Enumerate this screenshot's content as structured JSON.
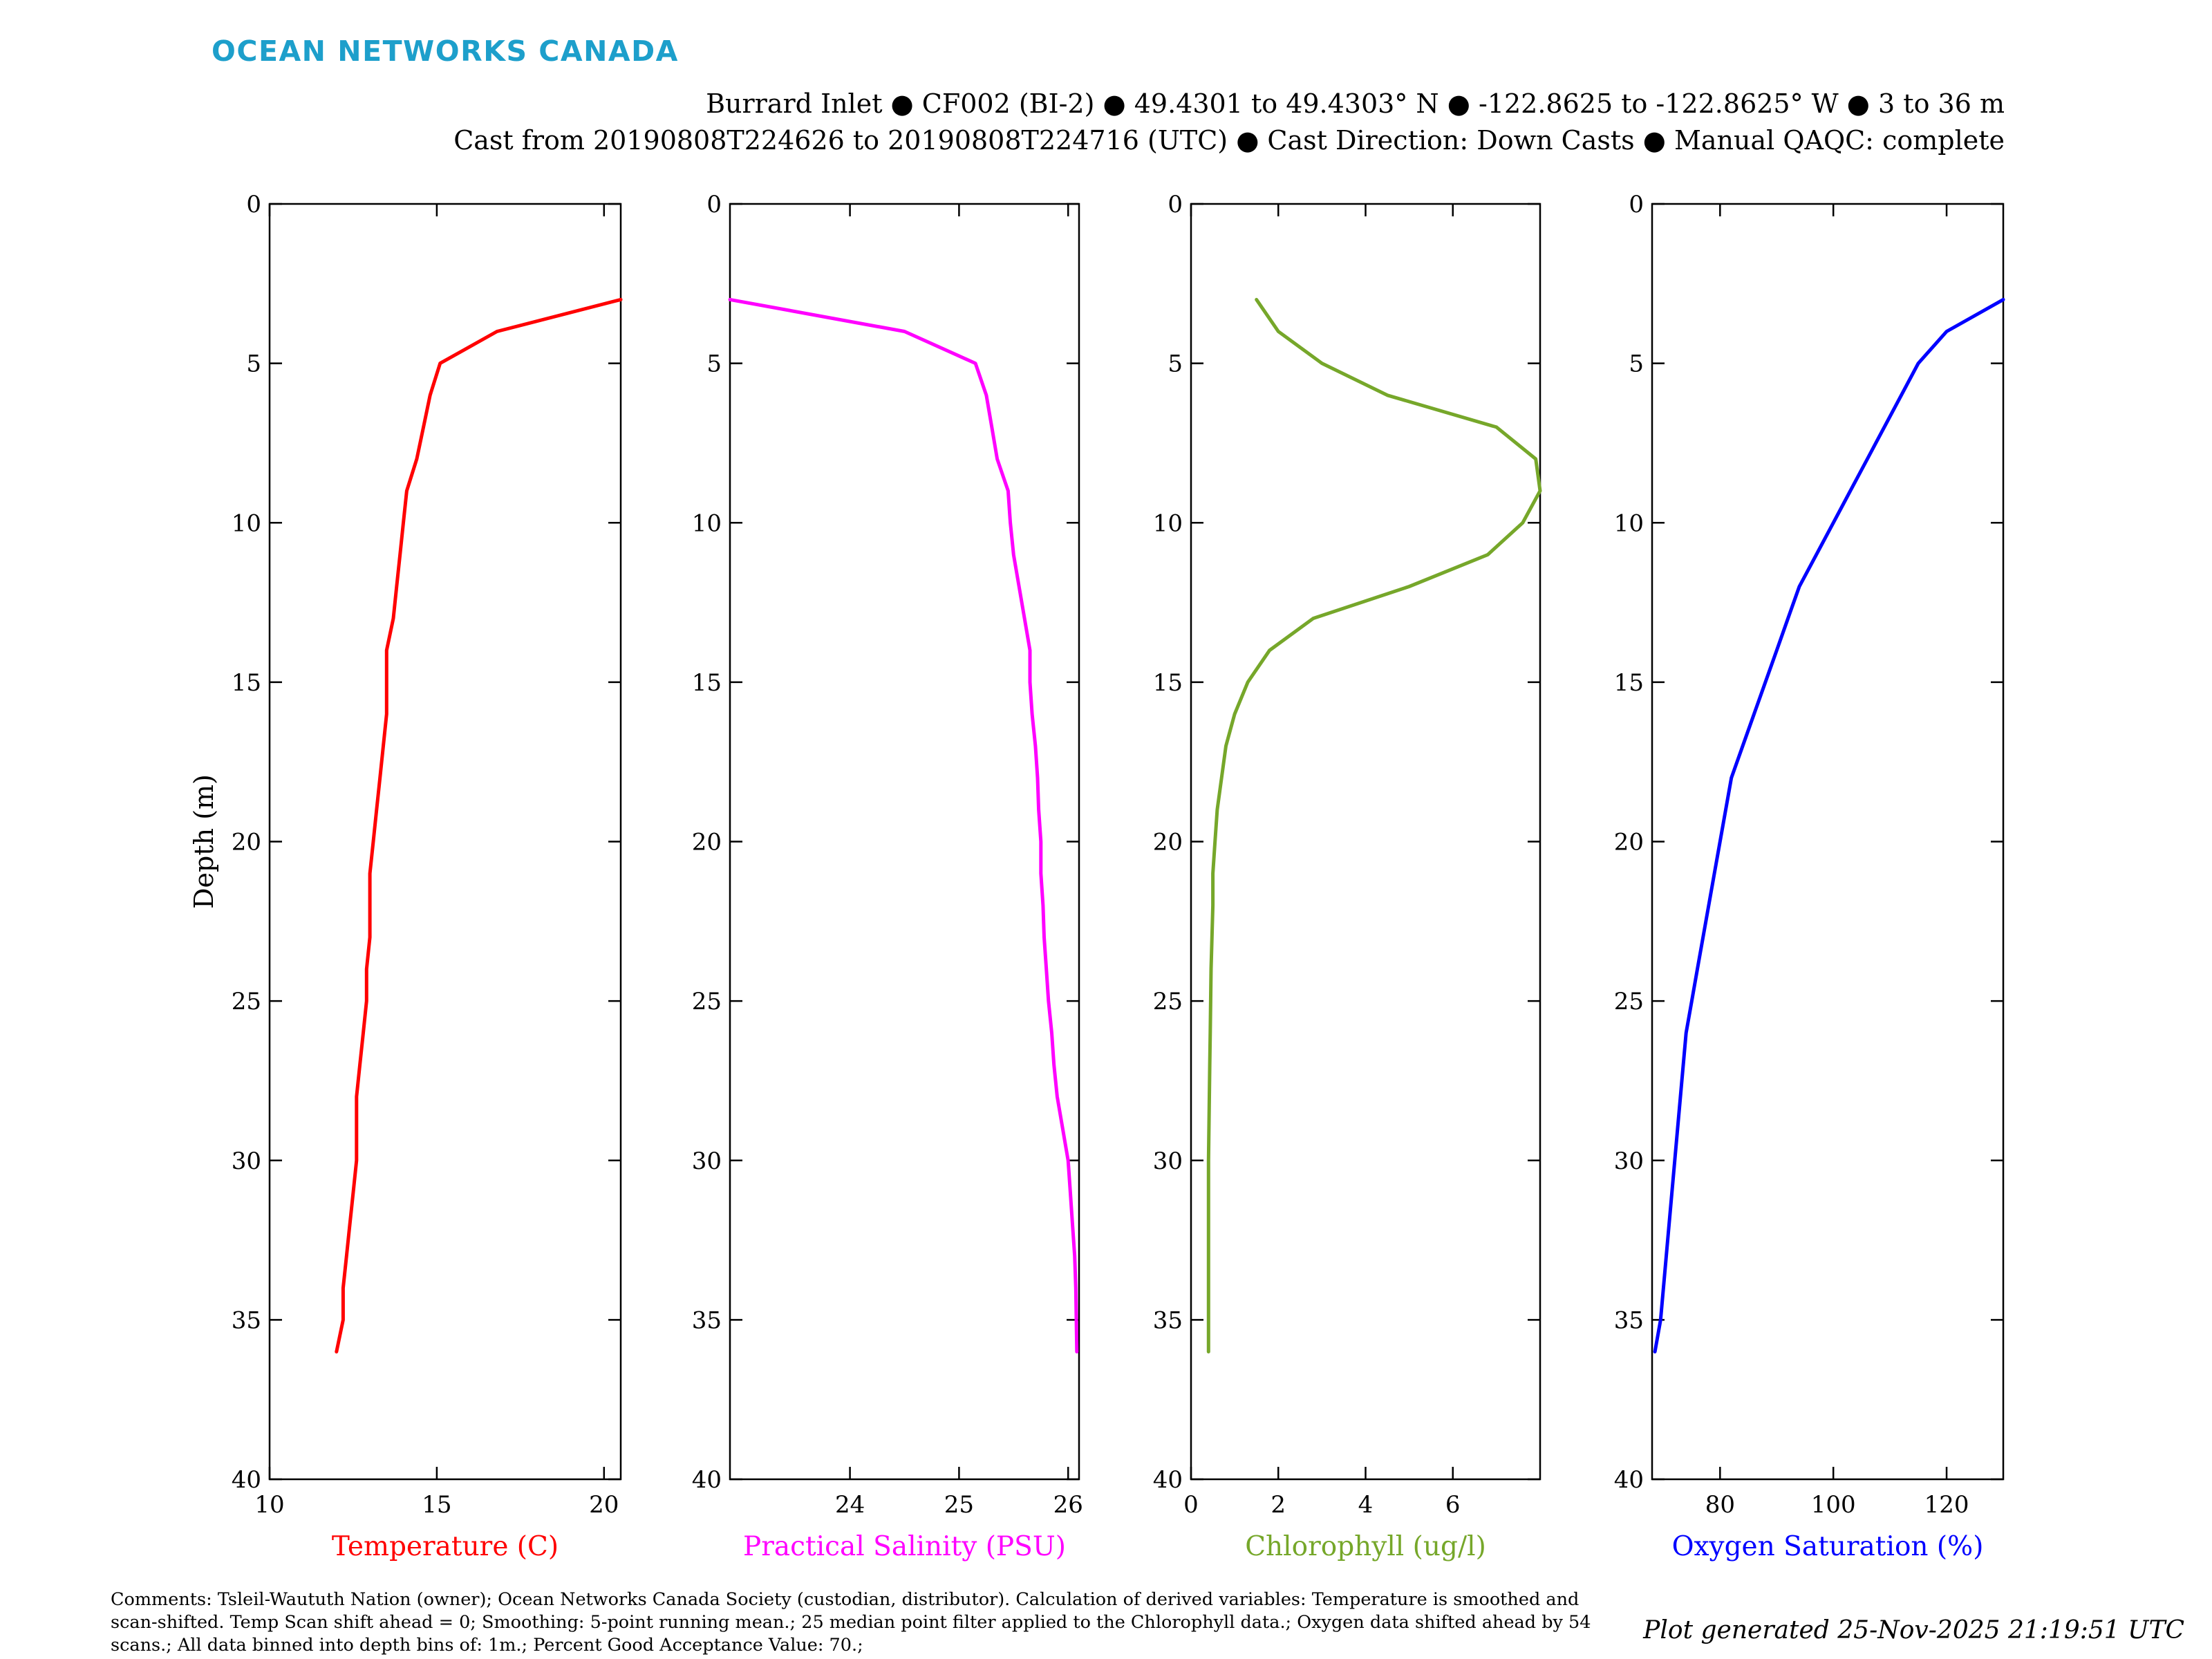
{
  "brand": "OCEAN NETWORKS CANADA",
  "title_line1": "Burrard Inlet ● CF002 (BI-2) ● 49.4301 to 49.4303° N ● -122.8625 to -122.8625° W ● 3 to 36 m",
  "title_line2": "Cast from 20190808T224626 to 20190808T224716 (UTC) ● Cast Direction: Down Casts ● Manual QAQC: complete",
  "comments": "Comments: Tsleil-Waututh Nation (owner); Ocean Networks Canada Society (custodian, distributor). Calculation of derived variables: Temperature is smoothed and scan-shifted. Temp Scan shift ahead = 0; Smoothing: 5-point running mean.; 25 median point filter applied to the Chlorophyll data.; Oxygen data shifted ahead by 54 scans.; All data binned into depth bins of: 1m.; Percent Good Acceptance Value: 70.;",
  "generated": "Plot generated 25-Nov-2025 21:19:51 UTC",
  "chart_data": [
    {
      "type": "line",
      "xlabel": "Temperature (C)",
      "ylabel": "Depth (m)",
      "color": "#ff0000",
      "xlim": [
        10,
        20.5
      ],
      "xticks": [
        10,
        15,
        20
      ],
      "ylim": [
        0,
        40
      ],
      "yticks": [
        0,
        5,
        10,
        15,
        20,
        25,
        30,
        35,
        40
      ],
      "y_reversed": true,
      "series": [
        {
          "x": [
            20.5,
            16.8,
            15.1,
            14.8,
            14.6,
            14.4,
            14.1,
            14.0,
            13.9,
            13.8,
            13.7,
            13.5,
            13.5,
            13.5,
            13.4,
            13.3,
            13.2,
            13.1,
            13.0,
            13.0,
            13.0,
            12.9,
            12.9,
            12.8,
            12.7,
            12.6,
            12.6,
            12.6,
            12.5,
            12.4,
            12.3,
            12.2,
            12.2,
            12.1,
            12.0
          ],
          "y": [
            3,
            4,
            5,
            6,
            7,
            8,
            9,
            10,
            11,
            12,
            13,
            14,
            15,
            16,
            17,
            18,
            19,
            20,
            21,
            22,
            23,
            24,
            25,
            26,
            27,
            28,
            29,
            30,
            31,
            32,
            33,
            34,
            35,
            35.5,
            36
          ]
        }
      ]
    },
    {
      "type": "line",
      "xlabel": "Practical Salinity (PSU)",
      "ylabel": "",
      "color": "#ff00ff",
      "xlim": [
        22.9,
        26.1
      ],
      "xticks": [
        24,
        25,
        26
      ],
      "ylim": [
        0,
        40
      ],
      "yticks": [
        0,
        5,
        10,
        15,
        20,
        25,
        30,
        35,
        40
      ],
      "y_reversed": true,
      "series": [
        {
          "x": [
            22.9,
            24.5,
            25.15,
            25.25,
            25.3,
            25.35,
            25.45,
            25.47,
            25.5,
            25.55,
            25.6,
            25.65,
            25.65,
            25.67,
            25.7,
            25.72,
            25.73,
            25.75,
            25.75,
            25.77,
            25.78,
            25.8,
            25.82,
            25.85,
            25.87,
            25.9,
            25.95,
            26.0,
            26.02,
            26.04,
            26.06,
            26.07,
            26.08
          ],
          "y": [
            3,
            4,
            5,
            6,
            7,
            8,
            9,
            10,
            11,
            12,
            13,
            14,
            15,
            16,
            17,
            18,
            19,
            20,
            21,
            22,
            23,
            24,
            25,
            26,
            27,
            28,
            29,
            30,
            31,
            32,
            33,
            34,
            36
          ]
        }
      ]
    },
    {
      "type": "line",
      "xlabel": "Chlorophyll (ug/l)",
      "ylabel": "",
      "color": "#76a72a",
      "xlim": [
        0,
        8
      ],
      "xticks": [
        0,
        2,
        4,
        6
      ],
      "ylim": [
        0,
        40
      ],
      "yticks": [
        0,
        5,
        10,
        15,
        20,
        25,
        30,
        35,
        40
      ],
      "y_reversed": true,
      "series": [
        {
          "x": [
            1.5,
            2.0,
            3.0,
            4.5,
            7.0,
            7.9,
            8.0,
            7.6,
            6.8,
            5.0,
            2.8,
            1.8,
            1.3,
            1.0,
            0.8,
            0.7,
            0.6,
            0.55,
            0.5,
            0.5,
            0.48,
            0.46,
            0.45,
            0.44,
            0.43,
            0.42,
            0.41,
            0.4,
            0.4,
            0.4,
            0.4,
            0.4,
            0.4,
            0.4
          ],
          "y": [
            3,
            4,
            5,
            6,
            7,
            8,
            9,
            10,
            11,
            12,
            13,
            14,
            15,
            16,
            17,
            18,
            19,
            20,
            21,
            22,
            23,
            24,
            25,
            26,
            27,
            28,
            29,
            30,
            31,
            32,
            33,
            34,
            35,
            36
          ]
        }
      ]
    },
    {
      "type": "line",
      "xlabel": "Oxygen Saturation (%)",
      "ylabel": "",
      "color": "#0000ff",
      "xlim": [
        68,
        130
      ],
      "xticks": [
        80,
        100,
        120
      ],
      "ylim": [
        0,
        40
      ],
      "yticks": [
        0,
        5,
        10,
        15,
        20,
        25,
        30,
        35,
        40
      ],
      "y_reversed": true,
      "series": [
        {
          "x": [
            130,
            120,
            115,
            112,
            109,
            106,
            103,
            100,
            97,
            94,
            92,
            90,
            88,
            86,
            84,
            82,
            81,
            80,
            79,
            78,
            77,
            76,
            75,
            74,
            73.5,
            73,
            72.5,
            72,
            71.5,
            71,
            70.5,
            70,
            69.5,
            69,
            68.5
          ],
          "y": [
            3,
            4,
            5,
            6,
            7,
            8,
            9,
            10,
            11,
            12,
            13,
            14,
            15,
            16,
            17,
            18,
            19,
            20,
            21,
            22,
            23,
            24,
            25,
            26,
            27,
            28,
            29,
            30,
            31,
            32,
            33,
            34,
            35,
            35.5,
            36
          ]
        }
      ]
    }
  ]
}
